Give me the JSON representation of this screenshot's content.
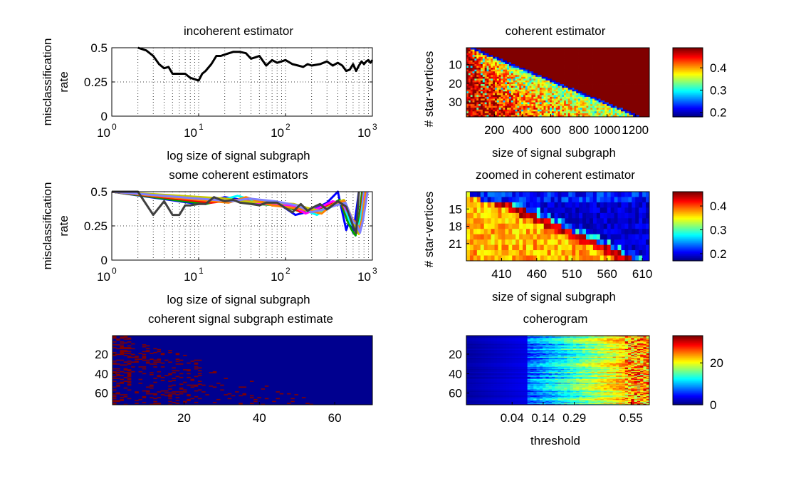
{
  "figure": {
    "background": "#ffffff",
    "colormap": "jet"
  },
  "chart_data": [
    {
      "id": "incoherent",
      "type": "line",
      "title": "incoherent estimator",
      "xlabel": "log size of signal subgraph",
      "ylabel_lines": [
        "misclassification",
        "rate"
      ],
      "xscale": "log",
      "xlim": [
        1,
        1000
      ],
      "ylim": [
        0,
        0.5
      ],
      "yticks": [
        0,
        0.25,
        0.5
      ],
      "ytick_labels": [
        "0",
        "0.25",
        "0.5"
      ],
      "xtick_mantissa": "10",
      "xtick_exponents": [
        "0",
        "1",
        "2",
        "3"
      ],
      "grid": true,
      "series": [
        {
          "color": "#000000",
          "x": [
            2,
            2.5,
            3,
            3.5,
            4,
            4.5,
            5,
            6,
            7,
            8,
            9,
            10,
            11,
            12,
            14,
            16,
            18,
            20,
            25,
            30,
            35,
            40,
            45,
            50,
            60,
            70,
            80,
            90,
            100,
            120,
            140,
            160,
            180,
            200,
            250,
            300,
            350,
            400,
            450,
            500,
            550,
            600,
            650,
            700,
            750,
            800,
            850,
            900,
            950,
            1000
          ],
          "y": [
            0.5,
            0.48,
            0.44,
            0.38,
            0.35,
            0.36,
            0.31,
            0.31,
            0.31,
            0.28,
            0.27,
            0.26,
            0.31,
            0.33,
            0.38,
            0.44,
            0.44,
            0.45,
            0.47,
            0.47,
            0.46,
            0.42,
            0.43,
            0.44,
            0.37,
            0.41,
            0.39,
            0.4,
            0.41,
            0.38,
            0.37,
            0.36,
            0.38,
            0.37,
            0.38,
            0.4,
            0.37,
            0.39,
            0.37,
            0.33,
            0.34,
            0.38,
            0.33,
            0.37,
            0.4,
            0.38,
            0.4,
            0.41,
            0.39,
            0.41
          ]
        }
      ]
    },
    {
      "id": "some_coherent",
      "type": "line",
      "title": "some coherent estimators",
      "xlabel": "log size of signal subgraph",
      "ylabel_lines": [
        "misclassification",
        "rate"
      ],
      "xscale": "log",
      "xlim": [
        1,
        1000
      ],
      "ylim": [
        0,
        0.5
      ],
      "yticks": [
        0,
        0.25,
        0.5
      ],
      "ytick_labels": [
        "0",
        "0.25",
        "0.5"
      ],
      "xtick_mantissa": "10",
      "xtick_exponents": [
        "0",
        "1",
        "2",
        "3"
      ],
      "grid": true,
      "series": [
        {
          "color": "#0000ff",
          "x": [
            1,
            10,
            20,
            40,
            80,
            130,
            200,
            300,
            400,
            500,
            550,
            600,
            650,
            700
          ],
          "y": [
            0.5,
            0.41,
            0.46,
            0.43,
            0.42,
            0.33,
            0.36,
            0.42,
            0.5,
            0.22,
            0.3,
            0.2,
            0.35,
            0.5
          ]
        },
        {
          "color": "#00a000",
          "x": [
            1,
            12,
            22,
            45,
            90,
            140,
            210,
            320,
            420,
            520,
            580,
            640,
            700,
            760
          ],
          "y": [
            0.5,
            0.41,
            0.45,
            0.41,
            0.4,
            0.36,
            0.35,
            0.4,
            0.44,
            0.28,
            0.22,
            0.18,
            0.3,
            0.5
          ]
        },
        {
          "color": "#ff0000",
          "x": [
            1,
            14,
            25,
            50,
            100,
            150,
            220,
            330,
            440,
            540,
            600,
            660,
            720,
            780
          ],
          "y": [
            0.5,
            0.42,
            0.44,
            0.44,
            0.41,
            0.35,
            0.37,
            0.41,
            0.42,
            0.3,
            0.25,
            0.2,
            0.28,
            0.5
          ]
        },
        {
          "color": "#00ffff",
          "x": [
            1,
            16,
            28,
            55,
            110,
            160,
            230,
            340,
            450,
            560,
            620,
            680,
            740,
            800
          ],
          "y": [
            0.5,
            0.43,
            0.47,
            0.42,
            0.39,
            0.37,
            0.33,
            0.39,
            0.43,
            0.27,
            0.24,
            0.22,
            0.32,
            0.5
          ]
        },
        {
          "color": "#ff00ff",
          "x": [
            1,
            18,
            30,
            60,
            120,
            170,
            240,
            350,
            460,
            570,
            630,
            690,
            750,
            820
          ],
          "y": [
            0.5,
            0.44,
            0.44,
            0.41,
            0.4,
            0.34,
            0.38,
            0.43,
            0.41,
            0.31,
            0.26,
            0.21,
            0.27,
            0.5
          ]
        },
        {
          "color": "#c8c800",
          "x": [
            1,
            20,
            32,
            65,
            125,
            180,
            250,
            360,
            470,
            580,
            640,
            700,
            760,
            840
          ],
          "y": [
            0.5,
            0.45,
            0.43,
            0.42,
            0.41,
            0.38,
            0.36,
            0.41,
            0.44,
            0.29,
            0.25,
            0.19,
            0.3,
            0.5
          ]
        },
        {
          "color": "#ff8000",
          "x": [
            1,
            22,
            35,
            70,
            130,
            190,
            260,
            370,
            480,
            590,
            650,
            710,
            770,
            860
          ],
          "y": [
            0.5,
            0.42,
            0.46,
            0.4,
            0.38,
            0.36,
            0.34,
            0.42,
            0.43,
            0.3,
            0.27,
            0.23,
            0.31,
            0.5
          ]
        },
        {
          "color": "#8080ff",
          "x": [
            1,
            24,
            38,
            75,
            135,
            200,
            270,
            380,
            490,
            600,
            660,
            720,
            780,
            880
          ],
          "y": [
            0.5,
            0.43,
            0.45,
            0.43,
            0.4,
            0.35,
            0.37,
            0.4,
            0.42,
            0.28,
            0.26,
            0.2,
            0.29,
            0.5
          ]
        },
        {
          "color": "#404040",
          "x": [
            1,
            2,
            3,
            4,
            5,
            6,
            7,
            8,
            10,
            12,
            15,
            18,
            20,
            25,
            30,
            40,
            50,
            60,
            80,
            100,
            120,
            150,
            180,
            200,
            250,
            300,
            400,
            500,
            600,
            650,
            700
          ],
          "y": [
            0.5,
            0.5,
            0.33,
            0.43,
            0.33,
            0.33,
            0.4,
            0.4,
            0.41,
            0.41,
            0.46,
            0.44,
            0.43,
            0.44,
            0.42,
            0.41,
            0.4,
            0.42,
            0.42,
            0.38,
            0.35,
            0.41,
            0.36,
            0.38,
            0.41,
            0.37,
            0.43,
            0.39,
            0.25,
            0.2,
            0.5
          ]
        }
      ]
    },
    {
      "id": "coherent",
      "type": "heatmap",
      "title": "coherent estimator",
      "xlabel": "size of signal subgraph",
      "ylabel": "# star-vertices",
      "xlim": [
        1,
        1300
      ],
      "ylim": [
        1,
        38
      ],
      "xticks": [
        200,
        400,
        600,
        800,
        1000,
        1200
      ],
      "xtick_labels": [
        "200",
        "400",
        "600",
        "800",
        "1000",
        "1200"
      ],
      "yticks": [
        10,
        20,
        30
      ],
      "ytick_labels": [
        "10",
        "20",
        "30"
      ],
      "pattern": "triangle",
      "clim": [
        0.18,
        0.49
      ],
      "colorbar_ticks": [
        0.2,
        0.3,
        0.4
      ],
      "colorbar_labels": [
        "0.2",
        "0.3",
        "0.4"
      ]
    },
    {
      "id": "zoomed",
      "type": "heatmap",
      "title": "zoomed in coherent estimator",
      "xlabel": "size of signal subgraph",
      "ylabel": "# star-vertices",
      "xlim": [
        360,
        620
      ],
      "ylim": [
        12,
        24
      ],
      "xticks": [
        410,
        460,
        510,
        560,
        610
      ],
      "xtick_labels": [
        "410",
        "460",
        "510",
        "560",
        "610"
      ],
      "yticks": [
        15,
        18,
        21
      ],
      "ytick_labels": [
        "15",
        "18",
        "21"
      ],
      "pattern": "zoom",
      "clim": [
        0.17,
        0.46
      ],
      "colorbar_ticks": [
        0.2,
        0.3,
        0.4
      ],
      "colorbar_labels": [
        "0.2",
        "0.3",
        "0.4"
      ]
    },
    {
      "id": "signal_subgraph",
      "type": "heatmap",
      "title": "coherent signal subgraph estimate",
      "xlabel": "",
      "ylabel": "",
      "xlim": [
        1,
        70
      ],
      "ylim": [
        1,
        72
      ],
      "xticks": [
        20,
        40,
        60
      ],
      "xtick_labels": [
        "20",
        "40",
        "60"
      ],
      "yticks": [
        20,
        40,
        60
      ],
      "ytick_labels": [
        "20",
        "40",
        "60"
      ],
      "pattern": "binary",
      "colors": {
        "background": "#00008f",
        "edge": "#800000"
      }
    },
    {
      "id": "coherogram",
      "type": "heatmap",
      "title": "coherogram",
      "xlabel": "threshold",
      "ylabel": "",
      "xlim": [
        0,
        1
      ],
      "ylim": [
        1,
        72
      ],
      "xticks": [
        0.25,
        0.42,
        0.59,
        0.9
      ],
      "xtick_labels": [
        "0.04",
        "0.14",
        "0.29",
        "0.55"
      ],
      "yticks": [
        20,
        40,
        60
      ],
      "ytick_labels": [
        "20",
        "40",
        "60"
      ],
      "pattern": "coherogram",
      "clim": [
        0,
        33
      ],
      "colorbar_ticks": [
        0,
        20
      ],
      "colorbar_labels": [
        "0",
        "20"
      ]
    }
  ]
}
